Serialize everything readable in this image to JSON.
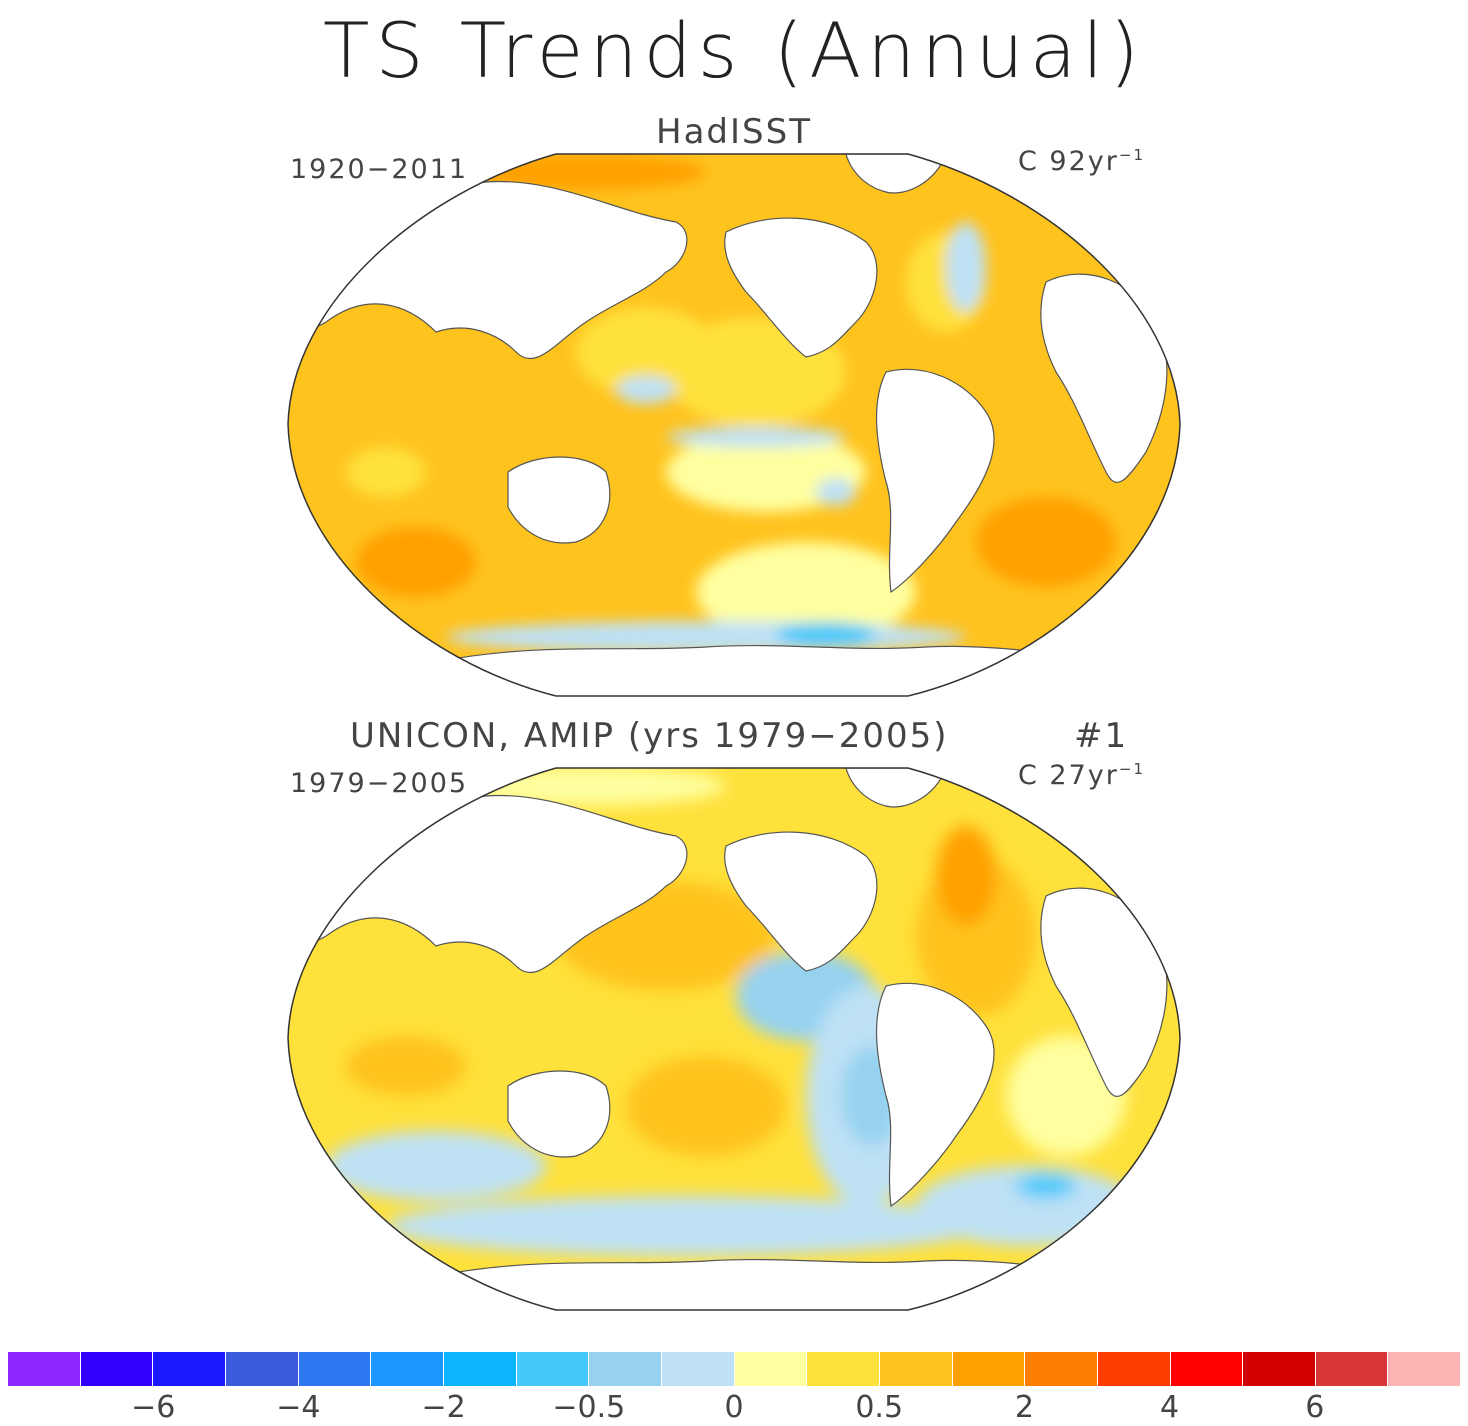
{
  "title": "TS Trends (Annual)",
  "panels": [
    {
      "title": "HadISST",
      "period": "1920−2011",
      "units": "C 92yr",
      "units_exp": "−1"
    },
    {
      "title": "UNICON, AMIP (yrs 1979−2005)",
      "run": "#1",
      "period": "1979−2005",
      "units": "C 27yr",
      "units_exp": "−1"
    }
  ],
  "colorbar": {
    "colors": [
      "#8c28ff",
      "#3200ff",
      "#1919ff",
      "#3c5adc",
      "#2d78f0",
      "#1e96ff",
      "#0cb4ff",
      "#46c8fa",
      "#96d2f0",
      "#bee1f5",
      "#ffffa0",
      "#ffe13c",
      "#ffc31e",
      "#ffa000",
      "#ff7d00",
      "#ff3c00",
      "#ff0000",
      "#d20000",
      "#d73737",
      "#ffb4b4"
    ],
    "tick_labels": [
      "−6",
      "−4",
      "−2",
      "−0.5",
      "0",
      "0.5",
      "2",
      "4",
      "6"
    ]
  },
  "map_colors": {
    "ocean_warm": "#ffc31e",
    "ocean_strong": "#ffa000",
    "ocean_mild": "#ffe13c",
    "ocean_neutral": "#ffffa0",
    "ocean_cool": "#bee1f5",
    "ocean_cooler": "#96d2f0",
    "ocean_cold": "#46c8fa",
    "land": "#ffffff",
    "coast": "#555555"
  }
}
